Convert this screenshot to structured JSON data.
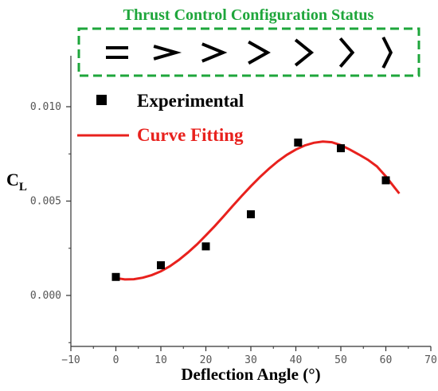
{
  "chart_data": {
    "type": "scatter",
    "xlabel": "Deflection Angle (°)",
    "ylabel": "C",
    "ylabel_subscript": "L",
    "xlim": [
      -10,
      70
    ],
    "ylim": [
      -0.0027,
      0.0127
    ],
    "xticks": [
      -10,
      0,
      10,
      20,
      30,
      40,
      50,
      60,
      70
    ],
    "yticks": [
      0.0,
      0.005,
      0.01
    ],
    "ytick_labels": [
      "0.000",
      "0.005",
      "0.010"
    ],
    "grid": false,
    "legend_position": "top-left",
    "series": [
      {
        "name": "Experimental",
        "type": "scatter",
        "marker": "square",
        "color": "#000000",
        "x": [
          0,
          10,
          20,
          30,
          40.5,
          50,
          60
        ],
        "y": [
          0.00098,
          0.0016,
          0.0026,
          0.0043,
          0.0081,
          0.0078,
          0.0061
        ]
      },
      {
        "name": "Curve Fitting",
        "type": "line",
        "color": "#e8211d",
        "x": [
          0,
          2,
          4,
          6,
          8,
          10,
          12,
          14,
          16,
          18,
          20,
          22,
          24,
          26,
          28,
          30,
          32,
          34,
          36,
          38,
          40,
          42,
          44,
          46,
          48,
          50,
          52,
          54,
          56,
          58,
          60,
          62,
          63
        ],
        "y": [
          0.00092,
          0.00085,
          0.00086,
          0.00094,
          0.00108,
          0.00128,
          0.00155,
          0.00188,
          0.00227,
          0.0027,
          0.00318,
          0.00368,
          0.00421,
          0.00475,
          0.00528,
          0.00579,
          0.00627,
          0.00671,
          0.00711,
          0.00745,
          0.00773,
          0.00795,
          0.00809,
          0.00815,
          0.00812,
          0.00796,
          0.00773,
          0.00747,
          0.00719,
          0.00684,
          0.00631,
          0.0057,
          0.0054
        ]
      }
    ]
  },
  "status_box": {
    "title": "Thrust Control Configuration Status",
    "title_color": "#1ea63b",
    "border_color": "#1ea63b",
    "icons": [
      "parallel-lines-icon",
      "chevron-icon",
      "chevron-icon",
      "chevron-icon",
      "chevron-icon",
      "chevron-icon",
      "chevron-icon"
    ],
    "chevron_angles_deg": [
      0,
      8,
      20,
      32,
      45,
      57,
      70
    ]
  }
}
